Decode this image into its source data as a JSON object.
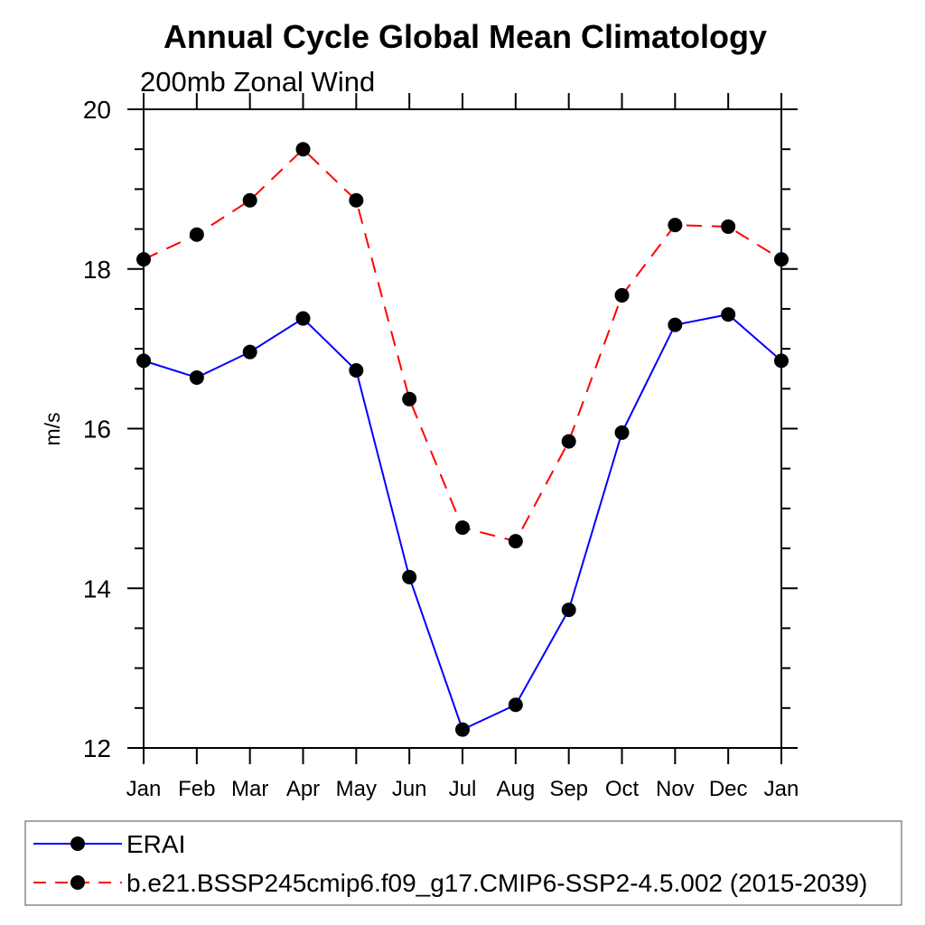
{
  "chart_data": {
    "type": "line",
    "title": "Annual Cycle Global Mean Climatology",
    "subtitle": "200mb Zonal Wind",
    "ylabel": "m/s",
    "categories": [
      "Jan",
      "Feb",
      "Mar",
      "Apr",
      "May",
      "Jun",
      "Jul",
      "Aug",
      "Sep",
      "Oct",
      "Nov",
      "Dec",
      "Jan"
    ],
    "series": [
      {
        "name": "ERAI",
        "color": "#0000ff",
        "line_style": "solid",
        "marker": "filled-circle",
        "marker_color": "#000000",
        "values": [
          16.85,
          16.64,
          16.96,
          17.38,
          16.73,
          14.14,
          12.23,
          12.54,
          13.73,
          15.95,
          17.3,
          17.43,
          16.85
        ]
      },
      {
        "name": "b.e21.BSSP245cmip6.f09_g17.CMIP6-SSP2-4.5.002 (2015-2039)",
        "color": "#ff0000",
        "line_style": "dashed",
        "marker": "filled-circle",
        "marker_color": "#000000",
        "values": [
          18.12,
          18.43,
          18.86,
          19.5,
          18.86,
          16.37,
          14.76,
          14.59,
          15.84,
          17.67,
          18.55,
          18.53,
          18.12
        ]
      }
    ],
    "ylim": [
      12,
      20
    ],
    "yticks": [
      12,
      14,
      16,
      18,
      20
    ],
    "minor_tick_interval": 0.5,
    "grid": false,
    "legend_position": "bottom-left",
    "axis_color": "#000000",
    "background_color": "#ffffff"
  }
}
